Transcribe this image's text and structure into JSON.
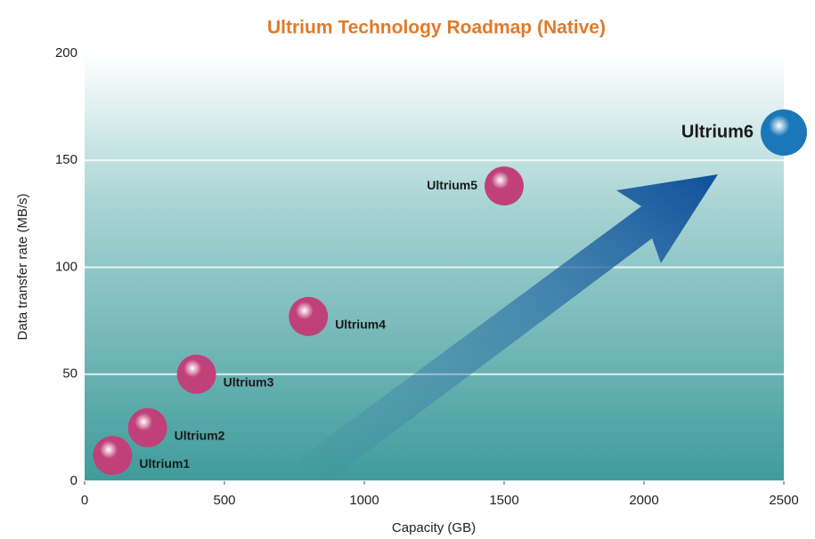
{
  "chart_data": {
    "type": "scatter",
    "title": "Ultrium Technology Roadmap (Native)",
    "x_label": "Capacity (GB)",
    "y_label": "Data transfer rate (MB/s)",
    "series": [
      {
        "names": [
          "Ultrium1",
          "Ultrium2",
          "Ultrium3",
          "Ultrium4",
          "Ultrium5",
          "Ultrium6"
        ],
        "x": [
          100,
          225,
          400,
          800,
          1500,
          2500
        ],
        "values": [
          12,
          25,
          50,
          77,
          138,
          163
        ],
        "colors": [
          "#c0407a",
          "#c0407a",
          "#c0407a",
          "#c0407a",
          "#c0407a",
          "#1a78b8"
        ]
      }
    ],
    "xlim": [
      0,
      2500
    ],
    "xticks": [
      0,
      500,
      1000,
      1500,
      2000,
      2500
    ],
    "ylim": [
      0,
      200
    ],
    "yticks": [
      0,
      50,
      100,
      150,
      200
    ],
    "grid": true
  }
}
